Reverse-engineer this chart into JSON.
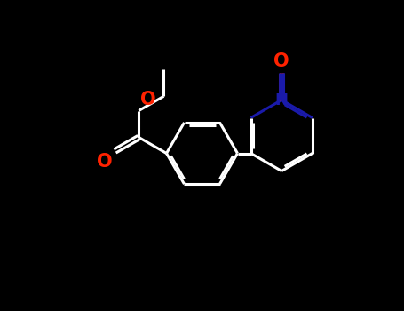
{
  "bg_color": "#000000",
  "bond_color": "#ffffff",
  "o_color": "#ff2200",
  "n_color": "#1a1aaa",
  "lw": 2.2,
  "dbo": 0.055,
  "figsize": [
    4.55,
    3.5
  ],
  "dpi": 100,
  "xlim": [
    0,
    9.1
  ],
  "ylim": [
    0,
    7.0
  ]
}
